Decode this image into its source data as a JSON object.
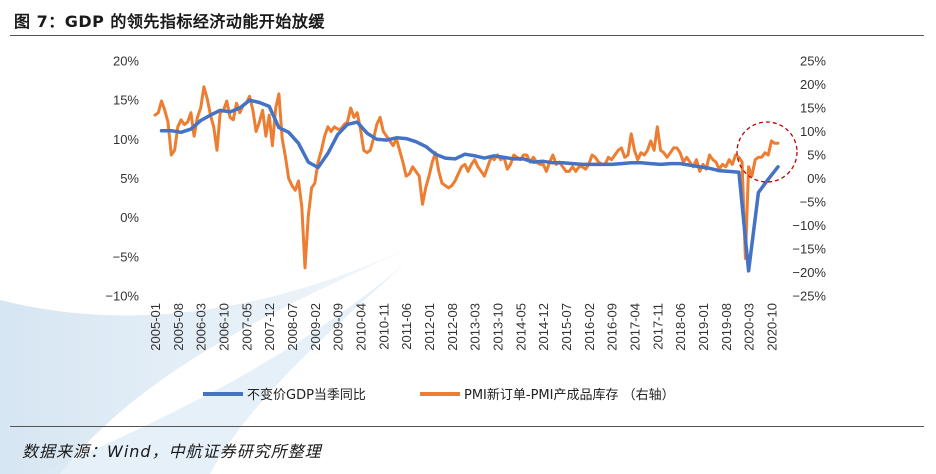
{
  "title": "图 7：GDP 的领先指标经济动能开始放缓",
  "source": "数据来源：Wind，中航证券研究所整理",
  "chart_data": {
    "type": "line",
    "x_ticks": [
      "2005-01",
      "2005-08",
      "2006-03",
      "2006-10",
      "2007-05",
      "2007-12",
      "2008-07",
      "2009-02",
      "2009-09",
      "2010-04",
      "2010-11",
      "2011-06",
      "2012-01",
      "2012-08",
      "2013-03",
      "2013-10",
      "2014-05",
      "2014-12",
      "2015-07",
      "2016-02",
      "2016-09",
      "2017-04",
      "2017-11",
      "2018-06",
      "2019-01",
      "2019-08",
      "2020-03",
      "2020-10"
    ],
    "y_left": {
      "min": -10,
      "max": 20,
      "step": 5,
      "tick_labels": [
        "20%",
        "15%",
        "10%",
        "5%",
        "0%",
        "−5%",
        "−10%"
      ]
    },
    "y_right": {
      "min": -25,
      "max": 25,
      "step": 5,
      "tick_labels": [
        "25%",
        "20%",
        "15%",
        "10%",
        "5%",
        "0%",
        "−5%",
        "−10%",
        "−15%",
        "−20%",
        "−25%"
      ]
    },
    "grid": false,
    "legend_position": "bottom",
    "annotation": "red dashed circle around latest PMI values (2020)",
    "series": [
      {
        "name": "不变价GDP当季同比",
        "axis": "left",
        "color": "#4472c4",
        "points": [
          [
            "2005-03",
            11.1
          ],
          [
            "2005-06",
            11.1
          ],
          [
            "2005-09",
            10.9
          ],
          [
            "2005-12",
            11.3
          ],
          [
            "2006-03",
            12.4
          ],
          [
            "2006-06",
            13.1
          ],
          [
            "2006-09",
            13.7
          ],
          [
            "2006-12",
            13.5
          ],
          [
            "2007-03",
            14.0
          ],
          [
            "2007-06",
            15.0
          ],
          [
            "2007-09",
            14.7
          ],
          [
            "2007-12",
            14.2
          ],
          [
            "2008-03",
            11.5
          ],
          [
            "2008-06",
            10.9
          ],
          [
            "2008-09",
            9.5
          ],
          [
            "2008-12",
            7.1
          ],
          [
            "2009-03",
            6.4
          ],
          [
            "2009-06",
            8.2
          ],
          [
            "2009-09",
            10.6
          ],
          [
            "2009-12",
            11.9
          ],
          [
            "2010-03",
            12.2
          ],
          [
            "2010-06",
            10.8
          ],
          [
            "2010-09",
            10.0
          ],
          [
            "2010-12",
            9.9
          ],
          [
            "2011-03",
            10.2
          ],
          [
            "2011-06",
            10.1
          ],
          [
            "2011-09",
            9.7
          ],
          [
            "2011-12",
            9.1
          ],
          [
            "2012-03",
            8.1
          ],
          [
            "2012-06",
            7.6
          ],
          [
            "2012-09",
            7.5
          ],
          [
            "2012-12",
            8.1
          ],
          [
            "2013-03",
            7.9
          ],
          [
            "2013-06",
            7.6
          ],
          [
            "2013-09",
            7.9
          ],
          [
            "2013-12",
            7.7
          ],
          [
            "2014-03",
            7.5
          ],
          [
            "2014-06",
            7.5
          ],
          [
            "2014-09",
            7.1
          ],
          [
            "2014-12",
            7.2
          ],
          [
            "2015-03",
            7.0
          ],
          [
            "2015-06",
            7.0
          ],
          [
            "2015-09",
            6.9
          ],
          [
            "2015-12",
            6.8
          ],
          [
            "2016-03",
            6.8
          ],
          [
            "2016-06",
            6.8
          ],
          [
            "2016-09",
            6.8
          ],
          [
            "2016-12",
            6.9
          ],
          [
            "2017-03",
            7.0
          ],
          [
            "2017-06",
            7.0
          ],
          [
            "2017-09",
            6.9
          ],
          [
            "2017-12",
            6.8
          ],
          [
            "2018-03",
            6.9
          ],
          [
            "2018-06",
            6.9
          ],
          [
            "2018-09",
            6.7
          ],
          [
            "2018-12",
            6.5
          ],
          [
            "2019-03",
            6.3
          ],
          [
            "2019-06",
            6.0
          ],
          [
            "2019-09",
            5.9
          ],
          [
            "2019-12",
            5.8
          ],
          [
            "2020-03",
            -6.8
          ],
          [
            "2020-06",
            3.2
          ],
          [
            "2020-09",
            4.9
          ],
          [
            "2020-12",
            6.5
          ]
        ]
      },
      {
        "name": "PMI新订单-PMI产成品库存 （右轴）",
        "axis": "right",
        "color": "#ed7d31",
        "points": [
          [
            "2005-01",
            13.5
          ],
          [
            "2005-02",
            14.0
          ],
          [
            "2005-03",
            16.5
          ],
          [
            "2005-04",
            14.5
          ],
          [
            "2005-05",
            12.0
          ],
          [
            "2005-06",
            5.0
          ],
          [
            "2005-07",
            6.0
          ],
          [
            "2005-08",
            11.0
          ],
          [
            "2005-09",
            12.5
          ],
          [
            "2005-10",
            11.5
          ],
          [
            "2005-11",
            12.0
          ],
          [
            "2005-12",
            14.0
          ],
          [
            "2006-01",
            9.0
          ],
          [
            "2006-02",
            13.0
          ],
          [
            "2006-03",
            15.0
          ],
          [
            "2006-04",
            19.5
          ],
          [
            "2006-05",
            17.0
          ],
          [
            "2006-06",
            13.5
          ],
          [
            "2006-07",
            11.0
          ],
          [
            "2006-08",
            6.0
          ],
          [
            "2006-09",
            14.0
          ],
          [
            "2006-10",
            14.5
          ],
          [
            "2006-11",
            16.5
          ],
          [
            "2006-12",
            13.0
          ],
          [
            "2007-01",
            12.5
          ],
          [
            "2007-02",
            16.0
          ],
          [
            "2007-03",
            14.0
          ],
          [
            "2007-04",
            15.5
          ],
          [
            "2007-05",
            16.0
          ],
          [
            "2007-06",
            17.5
          ],
          [
            "2007-07",
            14.5
          ],
          [
            "2007-08",
            10.0
          ],
          [
            "2007-09",
            12.0
          ],
          [
            "2007-10",
            14.5
          ],
          [
            "2007-11",
            9.0
          ],
          [
            "2007-12",
            13.5
          ],
          [
            "2008-01",
            7.0
          ],
          [
            "2008-02",
            15.0
          ],
          [
            "2008-03",
            18.0
          ],
          [
            "2008-04",
            8.5
          ],
          [
            "2008-05",
            4.5
          ],
          [
            "2008-06",
            0.0
          ],
          [
            "2008-07",
            -1.5
          ],
          [
            "2008-08",
            -2.5
          ],
          [
            "2008-09",
            -0.5
          ],
          [
            "2008-10",
            -6.0
          ],
          [
            "2008-11",
            -19.0
          ],
          [
            "2008-12",
            -8.0
          ],
          [
            "2009-01",
            -2.0
          ],
          [
            "2009-02",
            -1.0
          ],
          [
            "2009-03",
            3.5
          ],
          [
            "2009-04",
            6.0
          ],
          [
            "2009-05",
            9.0
          ],
          [
            "2009-06",
            11.0
          ],
          [
            "2009-07",
            10.0
          ],
          [
            "2009-08",
            11.0
          ],
          [
            "2009-09",
            10.5
          ],
          [
            "2009-10",
            10.5
          ],
          [
            "2009-11",
            11.5
          ],
          [
            "2009-12",
            12.0
          ],
          [
            "2010-01",
            15.0
          ],
          [
            "2010-02",
            13.0
          ],
          [
            "2010-03",
            14.0
          ],
          [
            "2010-04",
            10.5
          ],
          [
            "2010-05",
            6.0
          ],
          [
            "2010-06",
            5.5
          ],
          [
            "2010-07",
            6.0
          ],
          [
            "2010-08",
            8.5
          ],
          [
            "2010-09",
            11.5
          ],
          [
            "2010-10",
            13.0
          ],
          [
            "2010-11",
            10.0
          ],
          [
            "2010-12",
            9.0
          ],
          [
            "2011-01",
            8.0
          ],
          [
            "2011-02",
            7.0
          ],
          [
            "2011-03",
            8.5
          ],
          [
            "2011-04",
            6.0
          ],
          [
            "2011-05",
            3.5
          ],
          [
            "2011-06",
            0.5
          ],
          [
            "2011-07",
            1.0
          ],
          [
            "2011-08",
            2.5
          ],
          [
            "2011-09",
            1.5
          ],
          [
            "2011-10",
            0.5
          ],
          [
            "2011-11",
            -5.5
          ],
          [
            "2011-12",
            -2.0
          ],
          [
            "2012-01",
            0.5
          ],
          [
            "2012-02",
            3.5
          ],
          [
            "2012-03",
            5.5
          ],
          [
            "2012-04",
            1.5
          ],
          [
            "2012-05",
            -1.0
          ],
          [
            "2012-06",
            -1.5
          ],
          [
            "2012-07",
            -2.0
          ],
          [
            "2012-08",
            -1.5
          ],
          [
            "2012-09",
            -0.5
          ],
          [
            "2012-10",
            1.0
          ],
          [
            "2012-11",
            2.5
          ],
          [
            "2012-12",
            3.0
          ],
          [
            "2013-01",
            1.5
          ],
          [
            "2013-02",
            3.0
          ],
          [
            "2013-03",
            4.0
          ],
          [
            "2013-04",
            2.5
          ],
          [
            "2013-05",
            1.5
          ],
          [
            "2013-06",
            0.5
          ],
          [
            "2013-07",
            2.5
          ],
          [
            "2013-08",
            4.5
          ],
          [
            "2013-09",
            4.0
          ],
          [
            "2013-10",
            5.0
          ],
          [
            "2013-11",
            4.0
          ],
          [
            "2013-12",
            4.5
          ],
          [
            "2014-01",
            2.0
          ],
          [
            "2014-02",
            3.0
          ],
          [
            "2014-03",
            5.0
          ],
          [
            "2014-04",
            4.5
          ],
          [
            "2014-05",
            4.0
          ],
          [
            "2014-06",
            5.0
          ],
          [
            "2014-07",
            5.0
          ],
          [
            "2014-08",
            3.5
          ],
          [
            "2014-09",
            4.5
          ],
          [
            "2014-10",
            3.5
          ],
          [
            "2014-11",
            3.0
          ],
          [
            "2014-12",
            3.0
          ],
          [
            "2015-01",
            1.5
          ],
          [
            "2015-02",
            3.5
          ],
          [
            "2015-03",
            5.0
          ],
          [
            "2015-04",
            3.0
          ],
          [
            "2015-05",
            3.5
          ],
          [
            "2015-06",
            2.5
          ],
          [
            "2015-07",
            1.5
          ],
          [
            "2015-08",
            1.5
          ],
          [
            "2015-09",
            2.5
          ],
          [
            "2015-10",
            1.5
          ],
          [
            "2015-11",
            2.5
          ],
          [
            "2015-12",
            2.5
          ],
          [
            "2016-01",
            2.0
          ],
          [
            "2016-02",
            3.0
          ],
          [
            "2016-03",
            5.0
          ],
          [
            "2016-04",
            4.5
          ],
          [
            "2016-05",
            3.5
          ],
          [
            "2016-06",
            3.0
          ],
          [
            "2016-07",
            3.0
          ],
          [
            "2016-08",
            4.5
          ],
          [
            "2016-09",
            4.0
          ],
          [
            "2016-10",
            5.0
          ],
          [
            "2016-11",
            6.0
          ],
          [
            "2016-12",
            6.5
          ],
          [
            "2017-01",
            4.5
          ],
          [
            "2017-02",
            5.0
          ],
          [
            "2017-03",
            9.5
          ],
          [
            "2017-04",
            6.0
          ],
          [
            "2017-05",
            4.0
          ],
          [
            "2017-06",
            5.5
          ],
          [
            "2017-07",
            5.0
          ],
          [
            "2017-08",
            6.0
          ],
          [
            "2017-09",
            8.0
          ],
          [
            "2017-10",
            6.0
          ],
          [
            "2017-11",
            11.0
          ],
          [
            "2017-12",
            6.0
          ],
          [
            "2018-01",
            5.5
          ],
          [
            "2018-02",
            4.5
          ],
          [
            "2018-03",
            5.5
          ],
          [
            "2018-04",
            6.5
          ],
          [
            "2018-05",
            6.5
          ],
          [
            "2018-06",
            5.5
          ],
          [
            "2018-07",
            3.5
          ],
          [
            "2018-08",
            4.5
          ],
          [
            "2018-09",
            3.5
          ],
          [
            "2018-10",
            2.5
          ],
          [
            "2018-11",
            4.0
          ],
          [
            "2018-12",
            1.5
          ],
          [
            "2019-01",
            3.0
          ],
          [
            "2019-02",
            2.0
          ],
          [
            "2019-03",
            5.0
          ],
          [
            "2019-04",
            4.0
          ],
          [
            "2019-05",
            3.5
          ],
          [
            "2019-06",
            2.0
          ],
          [
            "2019-07",
            3.0
          ],
          [
            "2019-08",
            2.5
          ],
          [
            "2019-09",
            4.0
          ],
          [
            "2019-10",
            3.0
          ],
          [
            "2019-11",
            5.0
          ],
          [
            "2019-12",
            4.5
          ],
          [
            "2020-01",
            3.5
          ],
          [
            "2020-02",
            -17.0
          ],
          [
            "2020-03",
            2.5
          ],
          [
            "2020-04",
            0.5
          ],
          [
            "2020-05",
            4.0
          ],
          [
            "2020-06",
            4.5
          ],
          [
            "2020-07",
            4.5
          ],
          [
            "2020-08",
            5.5
          ],
          [
            "2020-09",
            5.0
          ],
          [
            "2020-10",
            8.0
          ],
          [
            "2020-11",
            7.5
          ],
          [
            "2020-12",
            7.5
          ]
        ]
      }
    ]
  }
}
